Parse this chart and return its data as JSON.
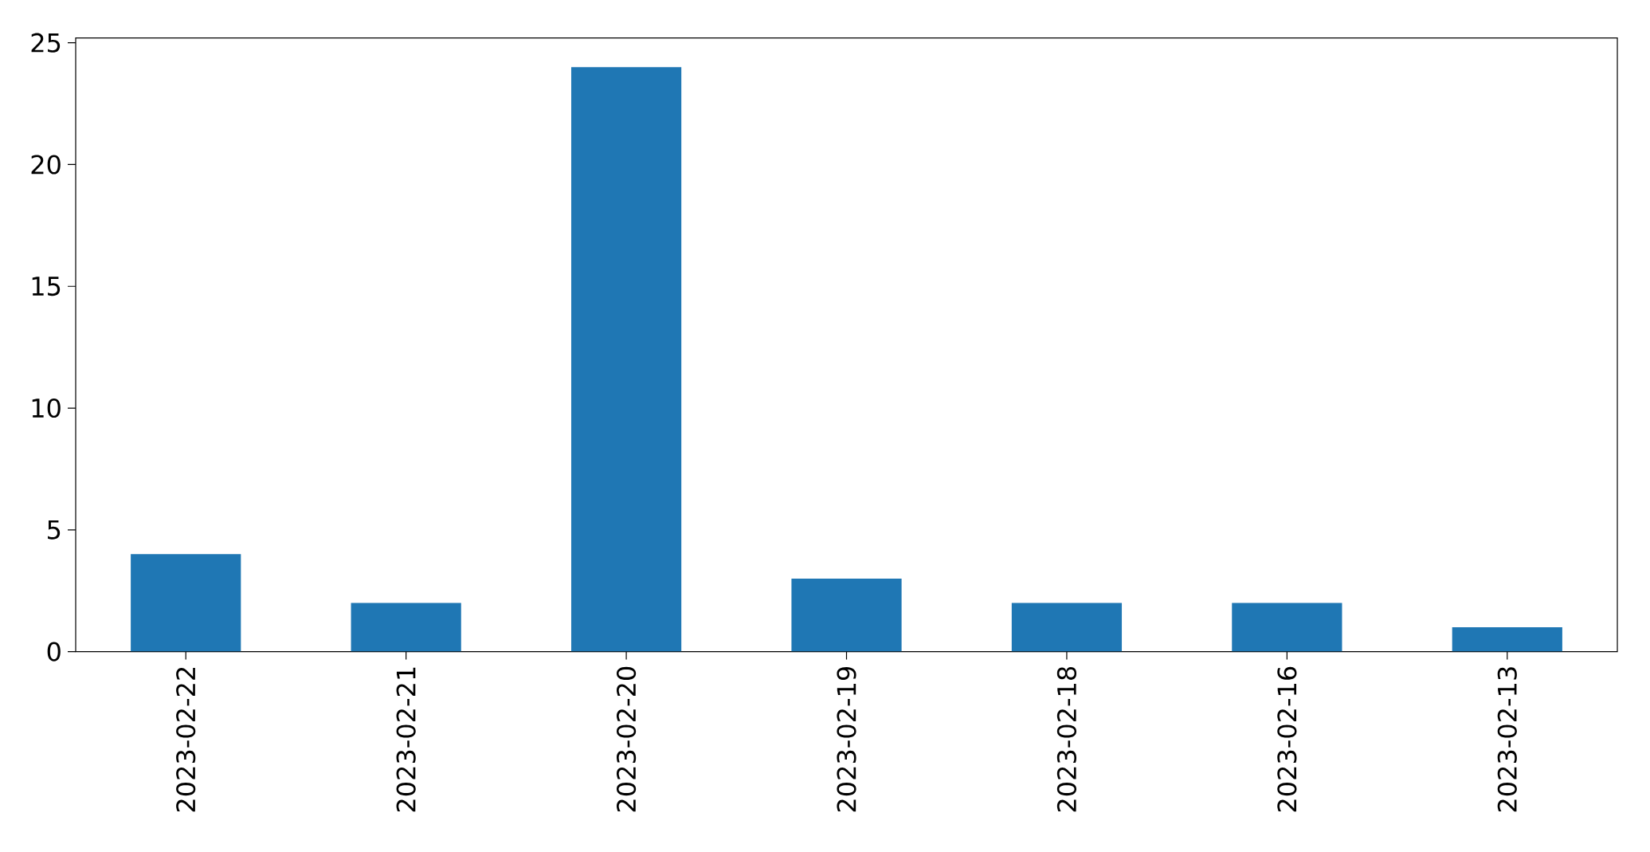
{
  "chart_data": {
    "type": "bar",
    "categories": [
      "2023-02-22",
      "2023-02-21",
      "2023-02-20",
      "2023-02-19",
      "2023-02-18",
      "2023-02-16",
      "2023-02-13"
    ],
    "values": [
      4,
      2,
      24,
      3,
      2,
      2,
      1
    ],
    "color": "#1f77b4",
    "ylim": [
      0,
      25.2
    ],
    "yticks": [
      0,
      5,
      10,
      15,
      20,
      25
    ],
    "grid": false
  }
}
